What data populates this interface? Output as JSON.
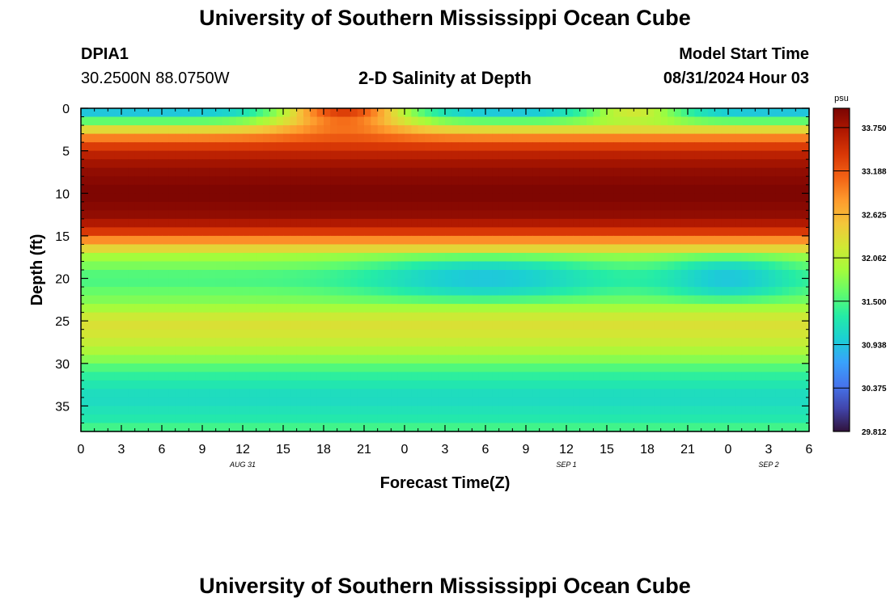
{
  "page": {
    "title": "University of Southern Mississippi Ocean Cube",
    "bottom_title": "University of Southern Mississippi Ocean Cube",
    "station_id": "DPIA1",
    "station_coords": "30.2500N  88.0750W",
    "chart_heading": "2-D Salinity at Depth",
    "model_label": "Model Start Time",
    "model_time": "08/31/2024 Hour 03"
  },
  "chart_data": {
    "type": "heatmap",
    "title": "2-D Salinity at Depth",
    "xlabel": "Forecast Time(Z)",
    "ylabel": "Depth (ft)",
    "x_ticks": [
      "0",
      "3",
      "6",
      "9",
      "12",
      "15",
      "18",
      "21",
      "0",
      "3",
      "6",
      "9",
      "12",
      "15",
      "18",
      "21",
      "0",
      "3",
      "6"
    ],
    "x_range_hours": [
      0,
      54
    ],
    "date_labels": [
      {
        "text": "AUG 31",
        "hour": 12
      },
      {
        "text": "SEP 1",
        "hour": 36
      },
      {
        "text": "SEP 2",
        "hour": 51
      }
    ],
    "y_ticks": [
      0,
      5,
      10,
      15,
      20,
      25,
      30,
      35
    ],
    "y_range": [
      0,
      38
    ],
    "colorbar": {
      "unit": "psu",
      "min": 29.812,
      "max": 34.0,
      "ticks": [
        29.812,
        30.375,
        30.938,
        31.5,
        32.062,
        32.625,
        33.188,
        33.75
      ],
      "tick_labels": [
        "29.812",
        "30.375",
        "30.938",
        "31.500",
        "32.062",
        "32.625",
        "33.188",
        "33.750"
      ],
      "colors": [
        "#30123b",
        "#4145ab",
        "#4675ed",
        "#39a2fc",
        "#1bcfd4",
        "#24eca6",
        "#61fc6c",
        "#a4fc3b",
        "#d1e834",
        "#f3c63a",
        "#fe9b2d",
        "#f36315",
        "#d93806",
        "#b11901",
        "#7a0402"
      ]
    },
    "depth_profile": [
      {
        "depth": 0,
        "value": 30.7
      },
      {
        "depth": 1,
        "value": 31.2
      },
      {
        "depth": 2,
        "value": 32.0
      },
      {
        "depth": 3,
        "value": 32.7
      },
      {
        "depth": 4,
        "value": 33.2
      },
      {
        "depth": 5,
        "value": 33.55
      },
      {
        "depth": 7,
        "value": 33.85
      },
      {
        "depth": 10,
        "value": 34.0
      },
      {
        "depth": 13,
        "value": 33.85
      },
      {
        "depth": 14.5,
        "value": 33.4
      },
      {
        "depth": 16,
        "value": 32.6
      },
      {
        "depth": 17.5,
        "value": 31.9
      },
      {
        "depth": 20,
        "value": 31.45
      },
      {
        "depth": 23,
        "value": 31.8
      },
      {
        "depth": 25,
        "value": 32.3
      },
      {
        "depth": 27,
        "value": 32.2
      },
      {
        "depth": 29,
        "value": 31.9
      },
      {
        "depth": 31,
        "value": 31.4
      },
      {
        "depth": 34,
        "value": 31.1
      },
      {
        "depth": 37,
        "value": 31.3
      },
      {
        "depth": 38,
        "value": 31.6
      }
    ],
    "features": [
      {
        "name": "surface salty plume",
        "hour_center": 19.5,
        "hour_width": 5,
        "depth_min": 0,
        "depth_max": 5,
        "value": 33.6
      },
      {
        "name": "surface salty plume 2",
        "hour_center": 41,
        "hour_width": 4,
        "depth_min": 0,
        "depth_max": 3,
        "value": 32.4
      },
      {
        "name": "fresh lens at 20 ft (day 2)",
        "hour_center": 30,
        "hour_width": 9,
        "depth_min": 18,
        "depth_max": 22,
        "value": 30.95
      },
      {
        "name": "fresh lens at 20 ft (day 3)",
        "hour_center": 48,
        "hour_width": 5,
        "depth_min": 18,
        "depth_max": 22,
        "value": 30.95
      }
    ]
  }
}
